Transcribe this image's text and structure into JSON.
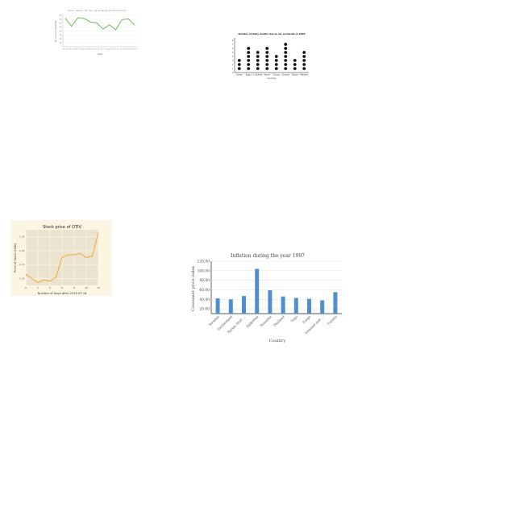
{
  "charts": [
    {
      "chart_data": {
        "type": "line",
        "title": "Crude - Kenya - 1st Tier - Ag Group per Product Channel",
        "xlabel": "Date",
        "ylabel": "Ag. Group Crude Price",
        "x": [
          "Jan-13",
          "Feb-13",
          "Mar-13",
          "Apr-13",
          "May-13",
          "Jun-13",
          "Jul-13",
          "Aug-13",
          "Sep-13",
          "Oct-13",
          "Nov-13",
          "Dec-13"
        ],
        "y": [
          73,
          52,
          74,
          72,
          63,
          61,
          45,
          56,
          43,
          69,
          71,
          55
        ],
        "ylim": [
          0,
          80
        ],
        "yticks": [
          "10",
          "20",
          "30",
          "40",
          "50",
          "60",
          "70",
          "80"
        ],
        "grid": true,
        "color": "#6ab04c"
      }
    },
    {
      "chart_data": {
        "type": "scatter",
        "subtype": "dot-plot",
        "title": "Number of Daily deaths due to car accidents in 2020",
        "xlabel": "Country",
        "ylabel": "",
        "categories": [
          "Turkey",
          "Egypt",
          "Ir. Bahrain",
          "Kenya",
          "Guinea",
          "Guyana",
          "Ghana",
          "Pakistan"
        ],
        "values": [
          3,
          6,
          5,
          6,
          4,
          7,
          3,
          5
        ],
        "ylim": [
          0,
          8
        ],
        "yticks": [
          "0",
          "1",
          "2",
          "3",
          "4",
          "5",
          "6",
          "7",
          "8"
        ],
        "color": "#111111"
      }
    },
    {
      "chart_data": {
        "type": "line",
        "title": "Stock price of OTIV",
        "xlabel": "Number of Days after 2013-07-18",
        "ylabel": "Price of Stock (USD)",
        "x": [
          0,
          1,
          2,
          3,
          4,
          5,
          6,
          7,
          8,
          9,
          10,
          11,
          12
        ],
        "y": [
          1.08,
          1.05,
          1.02,
          1.04,
          1.03,
          1.06,
          1.2,
          1.22,
          1.22,
          1.23,
          1.2,
          1.21,
          1.38
        ],
        "xlim": [
          0,
          12
        ],
        "xticks": [
          "0",
          "2",
          "4",
          "6",
          "8",
          "10",
          "12"
        ],
        "ylim": [
          1.0,
          1.4
        ],
        "yticks": [
          "1.05",
          "1.15",
          "1.25",
          "1.35"
        ],
        "grid": true,
        "background": "#ebe3cd",
        "color": "#f0a830"
      }
    },
    {
      "chart_data": {
        "type": "bar",
        "title": "Inflation during the year 1997",
        "xlabel": "Country",
        "ylabel": "Consumer price index",
        "categories": [
          "Sweden",
          "Switzerland",
          "Syrian Arab ...",
          "Tajikistan",
          "Tanzania",
          "Thailand",
          "Togo",
          "Tonga",
          "Trinidad and ...",
          "Tunisia"
        ],
        "values": [
          42,
          40,
          47,
          104,
          59,
          46,
          43,
          41,
          38,
          55
        ],
        "ylim": [
          10,
          120
        ],
        "yticks": [
          "120.00",
          "100.00",
          "80.00",
          "60.00",
          "40.00",
          "20.00"
        ],
        "ytick_values": [
          120,
          100,
          80,
          60,
          40,
          20
        ],
        "grid": true,
        "color": "#4f8fcf"
      }
    }
  ]
}
